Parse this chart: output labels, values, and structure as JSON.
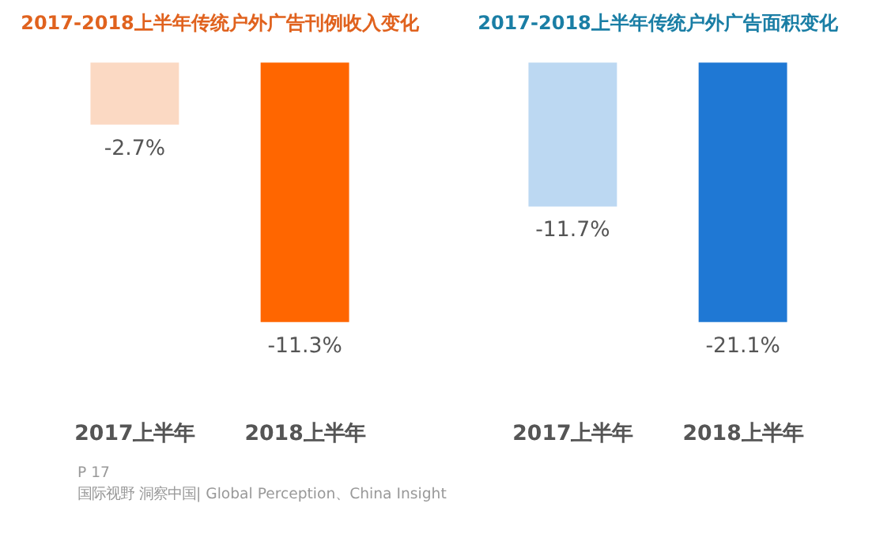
{
  "chart_data": [
    {
      "type": "bar",
      "title": "2017-2018上半年传统户外广告刊例收入变化",
      "categories": [
        "2017上半年",
        "2018上半年"
      ],
      "values": [
        -2.7,
        -11.3
      ],
      "colors": [
        "#fbd9c3",
        "#ff6600"
      ],
      "value_labels": [
        "-2.7%",
        "-11.3%"
      ],
      "annotations": [
        "P 17",
        "国际视野 洞察中国| Global Perception、China Insight"
      ]
    },
    {
      "type": "bar",
      "title": "2017-2018上半年传统户外广告面积变化",
      "categories": [
        "2017上半年",
        "2018上半年"
      ],
      "values": [
        -11.7,
        -21.1
      ],
      "colors": [
        "#bcd8f2",
        "#1f78d4"
      ],
      "value_labels": [
        "-11.7%",
        "-21.1%"
      ]
    }
  ]
}
